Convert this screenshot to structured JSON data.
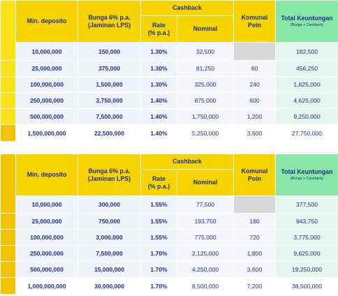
{
  "headers": {
    "min_deposito": "Min. deposito",
    "bunga_line1": "Bunga 6% p.a.",
    "bunga_line2": "(Jaminan LPS)",
    "cashback": "Cashback",
    "rate_line1": "Rate",
    "rate_line2": "(% p.a.)",
    "nominal": "Nominal",
    "komunal_line1": "Komunal",
    "komunal_line2": "Poin",
    "total_line1": "Total Keuntungan",
    "total_sub": "(Bunga + Cashback)"
  },
  "colors": {
    "header_yellow": "#f7d400",
    "side_yellow": "#fbe21a",
    "total_green": "#88e7a6",
    "text_navy": "#1d2f8a"
  },
  "table1": {
    "rows": [
      {
        "deposito": "10,000,000",
        "bunga": "150,000",
        "rate": "1.30%",
        "nominal": "32,500",
        "poin": "",
        "total": "182,500"
      },
      {
        "deposito": "25,000,000",
        "bunga": "375,000",
        "rate": "1.30%",
        "nominal": "81,250",
        "poin": "60",
        "total": "456,250"
      },
      {
        "deposito": "100,000,000",
        "bunga": "1,500,000",
        "rate": "1.30%",
        "nominal": "325,000",
        "poin": "240",
        "total": "1,825,000"
      },
      {
        "deposito": "250,000,000",
        "bunga": "3,750,000",
        "rate": "1.40%",
        "nominal": "875,000",
        "poin": "600",
        "total": "4,625,000"
      },
      {
        "deposito": "500,000,000",
        "bunga": "7,500,000",
        "rate": "1.40%",
        "nominal": "1,750,000",
        "poin": "1,200",
        "total": "9,250,000"
      },
      {
        "deposito": "1,500,000,000",
        "bunga": "22,500,000",
        "rate": "1.40%",
        "nominal": "5,250,000",
        "poin": "3,600",
        "total": "27,750,000"
      }
    ]
  },
  "table2": {
    "rows": [
      {
        "deposito": "10,000,000",
        "bunga": "300,000",
        "rate": "1.55%",
        "nominal": "77,500",
        "poin": "",
        "total": "377,500"
      },
      {
        "deposito": "25,000,000",
        "bunga": "750,000",
        "rate": "1.55%",
        "nominal": "193,750",
        "poin": "180",
        "total": "943,750"
      },
      {
        "deposito": "100,000,000",
        "bunga": "3,000,000",
        "rate": "1.55%",
        "nominal": "775,000",
        "poin": "720",
        "total": "3,775,000"
      },
      {
        "deposito": "250,000,000",
        "bunga": "7,500,000",
        "rate": "1.70%",
        "nominal": "2,125,000",
        "poin": "1,800",
        "total": "9,625,000"
      },
      {
        "deposito": "500,000,000",
        "bunga": "15,000,000",
        "rate": "1.70%",
        "nominal": "4,250,000",
        "poin": "3,600",
        "total": "19,250,000"
      },
      {
        "deposito": "1,000,000,000",
        "bunga": "30,000,000",
        "rate": "1.70%",
        "nominal": "8,500,000",
        "poin": "7,200",
        "total": "38,500,000"
      }
    ]
  }
}
